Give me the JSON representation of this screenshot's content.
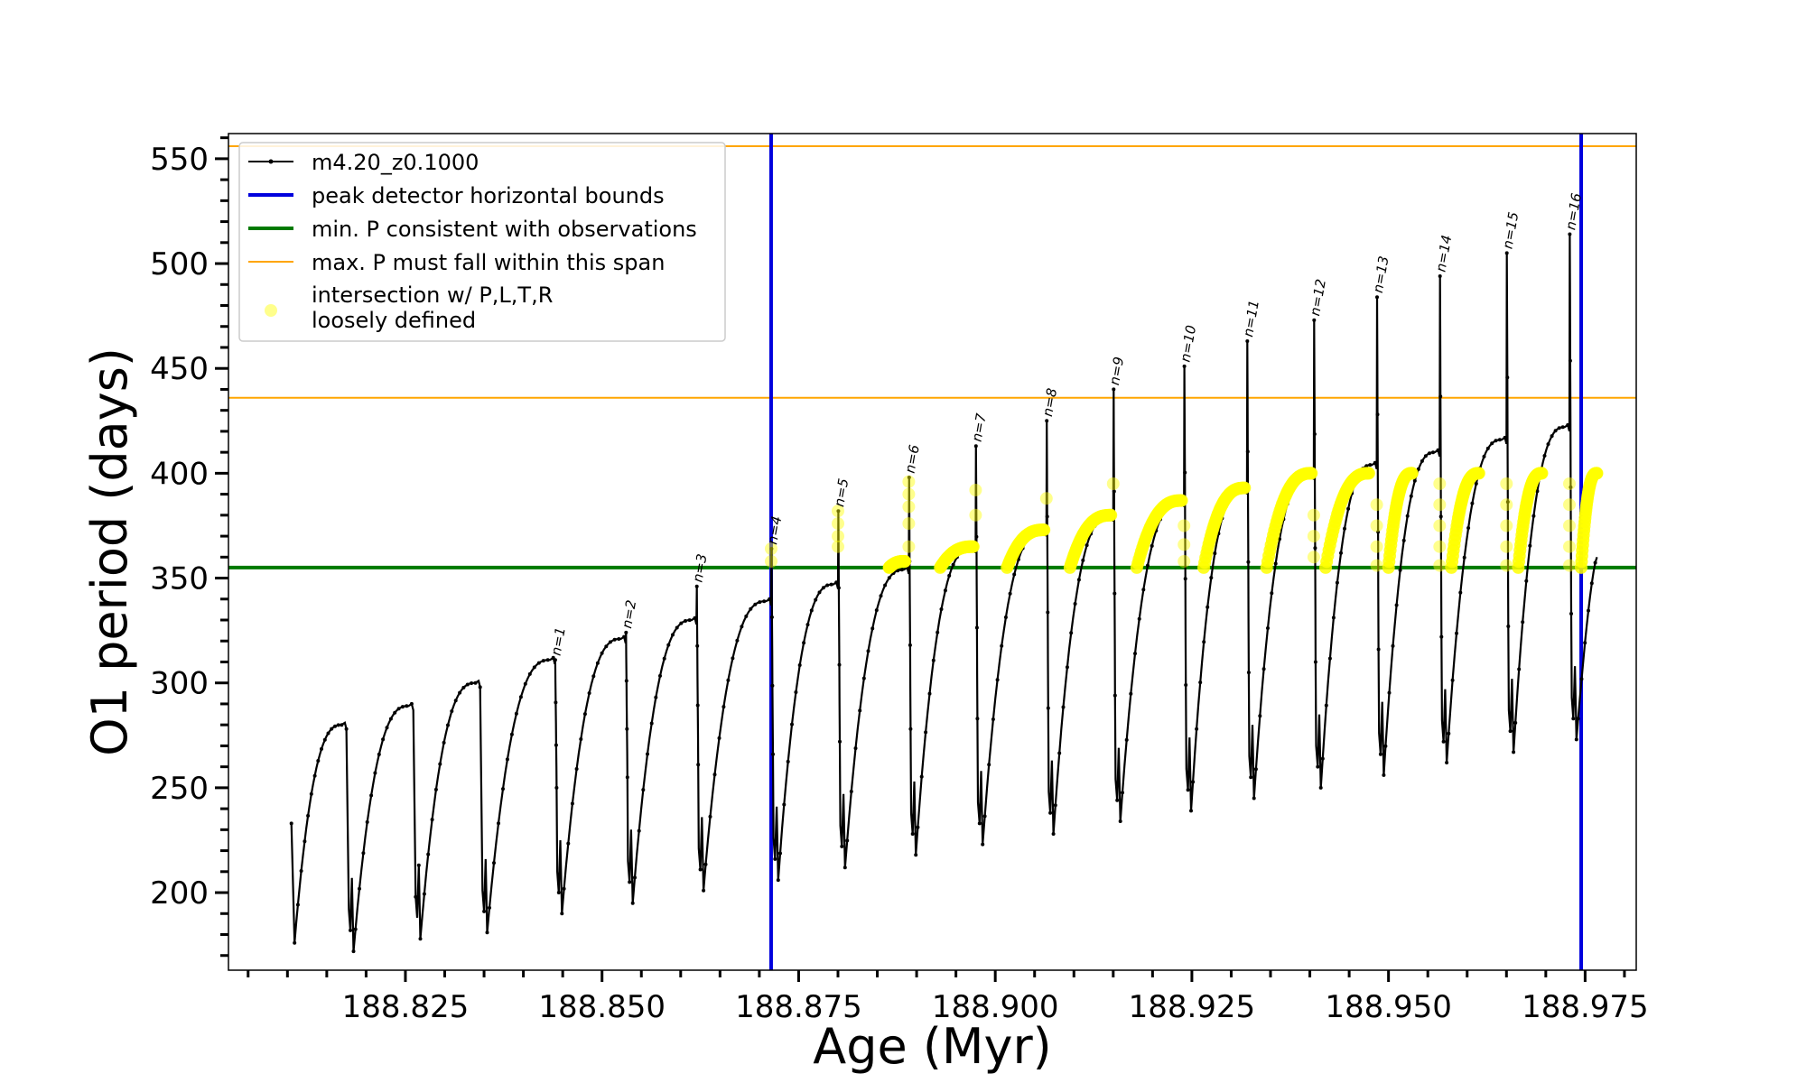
{
  "chart_data": {
    "type": "line",
    "xlabel": "Age (Myr)",
    "ylabel": "O1 period (days)",
    "xlim": [
      188.8025,
      188.9815
    ],
    "ylim": [
      163,
      562
    ],
    "xticks": [
      188.825,
      188.85,
      188.875,
      188.9,
      188.925,
      188.95,
      188.975
    ],
    "xtick_labels": [
      "188.825",
      "188.850",
      "188.875",
      "188.900",
      "188.925",
      "188.950",
      "188.975"
    ],
    "yticks": [
      200,
      250,
      300,
      350,
      400,
      450,
      500,
      550
    ],
    "ytick_labels": [
      "200",
      "250",
      "300",
      "350",
      "400",
      "450",
      "500",
      "550"
    ],
    "grid": false,
    "legend_placement": "upper-left",
    "series": [
      {
        "name": "m4.20_z0.1000",
        "color": "#000000",
        "style": "line-with-small-dots",
        "start": {
          "age": 188.8105,
          "period": 233
        },
        "first_min": 176,
        "pulses": [
          {
            "peak_age": 188.8175,
            "max": 281,
            "next_min": 172
          },
          {
            "peak_age": 188.826,
            "max": 290,
            "next_min": 178
          },
          {
            "peak_age": 188.8345,
            "max": 301,
            "next_min": 181
          },
          {
            "peak_age": 188.844,
            "max": 312,
            "spike": 311,
            "next_min": 190
          },
          {
            "peak_age": 188.853,
            "max": 322,
            "spike": 324,
            "next_min": 195
          },
          {
            "peak_age": 188.862,
            "max": 331,
            "spike": 346,
            "next_min": 201
          },
          {
            "peak_age": 188.8715,
            "max": 340,
            "spike": 364,
            "next_min": 206
          },
          {
            "peak_age": 188.88,
            "max": 348,
            "spike": 382,
            "next_min": 212
          },
          {
            "peak_age": 188.889,
            "max": 355,
            "spike": 398,
            "next_min": 218
          },
          {
            "peak_age": 188.8975,
            "max": 365,
            "spike": 413,
            "next_min": 223
          },
          {
            "peak_age": 188.9065,
            "max": 373,
            "spike": 425,
            "next_min": 228
          },
          {
            "peak_age": 188.915,
            "max": 380,
            "spike": 440,
            "next_min": 234
          },
          {
            "peak_age": 188.924,
            "max": 387,
            "spike": 451,
            "next_min": 239
          },
          {
            "peak_age": 188.932,
            "max": 393,
            "spike": 463,
            "next_min": 245
          },
          {
            "peak_age": 188.9405,
            "max": 400,
            "spike": 473,
            "next_min": 250
          },
          {
            "peak_age": 188.9485,
            "max": 405,
            "spike": 484,
            "next_min": 256
          },
          {
            "peak_age": 188.9565,
            "max": 411,
            "spike": 494,
            "next_min": 262
          },
          {
            "peak_age": 188.965,
            "max": 417,
            "spike": 505,
            "next_min": 267
          },
          {
            "peak_age": 188.973,
            "max": 423,
            "spike": 514,
            "next_min": 273
          }
        ],
        "end": {
          "age": 188.9765,
          "period": 360
        }
      },
      {
        "name": "peak detector horizontal bounds",
        "color": "#0000dd",
        "type": "vertical-lines",
        "x": [
          188.8715,
          188.9745
        ]
      },
      {
        "name": "min. P consistent with observations",
        "color": "#007a00",
        "type": "horizontal-line",
        "y": 355
      },
      {
        "name": "max. P must fall within this span",
        "color": "#ffa500",
        "type": "horizontal-lines",
        "y": [
          436,
          556
        ]
      },
      {
        "name": "intersection w/ P,L,T,R\nloosely defined",
        "color": "#ffff00",
        "type": "scatter",
        "marker_alpha": 0.85,
        "arcs": [
          {
            "x": [
              188.8865,
              188.8885
            ],
            "y": [
              355,
              358
            ]
          },
          {
            "x": [
              188.893,
              188.8972
            ],
            "y": [
              355,
              365
            ]
          },
          {
            "x": [
              188.9015,
              188.9062
            ],
            "y": [
              355,
              373
            ]
          },
          {
            "x": [
              188.9095,
              188.9147
            ],
            "y": [
              355,
              380
            ]
          },
          {
            "x": [
              188.918,
              188.9237
            ],
            "y": [
              355,
              387
            ]
          },
          {
            "x": [
              188.9265,
              188.9317
            ],
            "y": [
              355,
              393
            ]
          },
          {
            "x": [
              188.9345,
              188.9402
            ],
            "y": [
              355,
              400
            ]
          },
          {
            "x": [
              188.942,
              188.9475
            ],
            "y": [
              355,
              400
            ]
          },
          {
            "x": [
              188.95,
              188.953
            ],
            "y": [
              355,
              400
            ]
          },
          {
            "x": [
              188.958,
              188.9615
            ],
            "y": [
              355,
              400
            ]
          },
          {
            "x": [
              188.9665,
              188.9695
            ],
            "y": [
              355,
              400
            ]
          },
          {
            "x": [
              188.9745,
              188.9765
            ],
            "y": [
              355,
              400
            ]
          }
        ],
        "spike_points": [
          {
            "x": 188.8715,
            "y": [
              358,
              364
            ]
          },
          {
            "x": 188.88,
            "y": [
              365,
              370,
              376,
              382
            ]
          },
          {
            "x": 188.889,
            "y": [
              365,
              376,
              384,
              390,
              396
            ]
          },
          {
            "x": 188.8975,
            "y": [
              380,
              392
            ]
          },
          {
            "x": 188.9065,
            "y": [
              388
            ]
          },
          {
            "x": 188.915,
            "y": [
              395
            ]
          },
          {
            "x": 188.924,
            "y": [
              358,
              366,
              375
            ]
          },
          {
            "x": 188.9405,
            "y": [
              360,
              370,
              380
            ]
          },
          {
            "x": 188.9485,
            "y": [
              356,
              365,
              375,
              385
            ]
          },
          {
            "x": 188.9565,
            "y": [
              356,
              365,
              375,
              385,
              395
            ]
          },
          {
            "x": 188.965,
            "y": [
              356,
              365,
              375,
              385,
              395
            ]
          },
          {
            "x": 188.973,
            "y": [
              356,
              365,
              375,
              385,
              395
            ]
          }
        ]
      }
    ],
    "annotations": [
      {
        "text": "n=1",
        "x": 188.844,
        "y": 311
      },
      {
        "text": "n=2",
        "x": 188.853,
        "y": 324
      },
      {
        "text": "n=3",
        "x": 188.862,
        "y": 346
      },
      {
        "text": "n=4",
        "x": 188.8715,
        "y": 364
      },
      {
        "text": "n=5",
        "x": 188.88,
        "y": 382
      },
      {
        "text": "n=6",
        "x": 188.889,
        "y": 398
      },
      {
        "text": "n=7",
        "x": 188.8975,
        "y": 413
      },
      {
        "text": "n=8",
        "x": 188.9065,
        "y": 425
      },
      {
        "text": "n=9",
        "x": 188.915,
        "y": 440
      },
      {
        "text": "n=10",
        "x": 188.924,
        "y": 451
      },
      {
        "text": "n=11",
        "x": 188.932,
        "y": 463
      },
      {
        "text": "n=12",
        "x": 188.9405,
        "y": 473
      },
      {
        "text": "n=13",
        "x": 188.9485,
        "y": 484
      },
      {
        "text": "n=14",
        "x": 188.9565,
        "y": 494
      },
      {
        "text": "n=15",
        "x": 188.965,
        "y": 505
      },
      {
        "text": "n=16",
        "x": 188.973,
        "y": 514
      }
    ]
  }
}
